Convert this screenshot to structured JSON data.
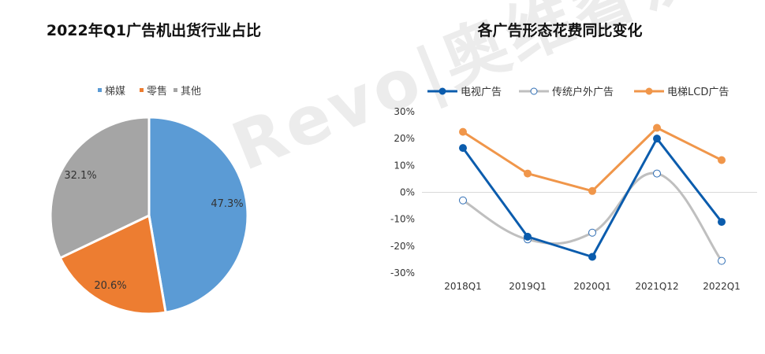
{
  "watermark": "AVC Revo|奥维睿沃",
  "chart_data": [
    {
      "type": "pie",
      "title": "2022年Q1广告机出货行业占比",
      "legend_position": "top",
      "categories": [
        "梯媒",
        "零售",
        "其他"
      ],
      "values": [
        47.3,
        20.6,
        32.1
      ],
      "labels": [
        "47.3%",
        "20.6%",
        "32.1%"
      ],
      "colors": [
        "#5B9BD5",
        "#ED7D31",
        "#A5A5A5"
      ]
    },
    {
      "type": "line",
      "title": "各广告形态花费同比变化",
      "legend_position": "top",
      "categories": [
        "2018Q1",
        "2019Q1",
        "2020Q1",
        "2021Q12",
        "2022Q1"
      ],
      "ylim": [
        -30,
        30
      ],
      "yticks": [
        -30,
        -20,
        -10,
        0,
        10,
        20,
        30
      ],
      "ytick_labels": [
        "-30%",
        "-20%",
        "-10%",
        "0%",
        "10%",
        "20%",
        "30%"
      ],
      "series": [
        {
          "name": "电视广告",
          "values": [
            16.5,
            -16.5,
            -24,
            20,
            -11
          ],
          "color": "#0B5CAD",
          "marker": "filled",
          "smooth": false
        },
        {
          "name": "传统户外广告",
          "values": [
            -3,
            -17.5,
            -15,
            7,
            -25.5
          ],
          "color": "#BFBFBF",
          "marker": "hollow",
          "smooth": true
        },
        {
          "name": "电梯LCD广告",
          "values": [
            22.5,
            7,
            0.5,
            24,
            12
          ],
          "color": "#F0964A",
          "marker": "filled",
          "smooth": false
        }
      ]
    }
  ]
}
